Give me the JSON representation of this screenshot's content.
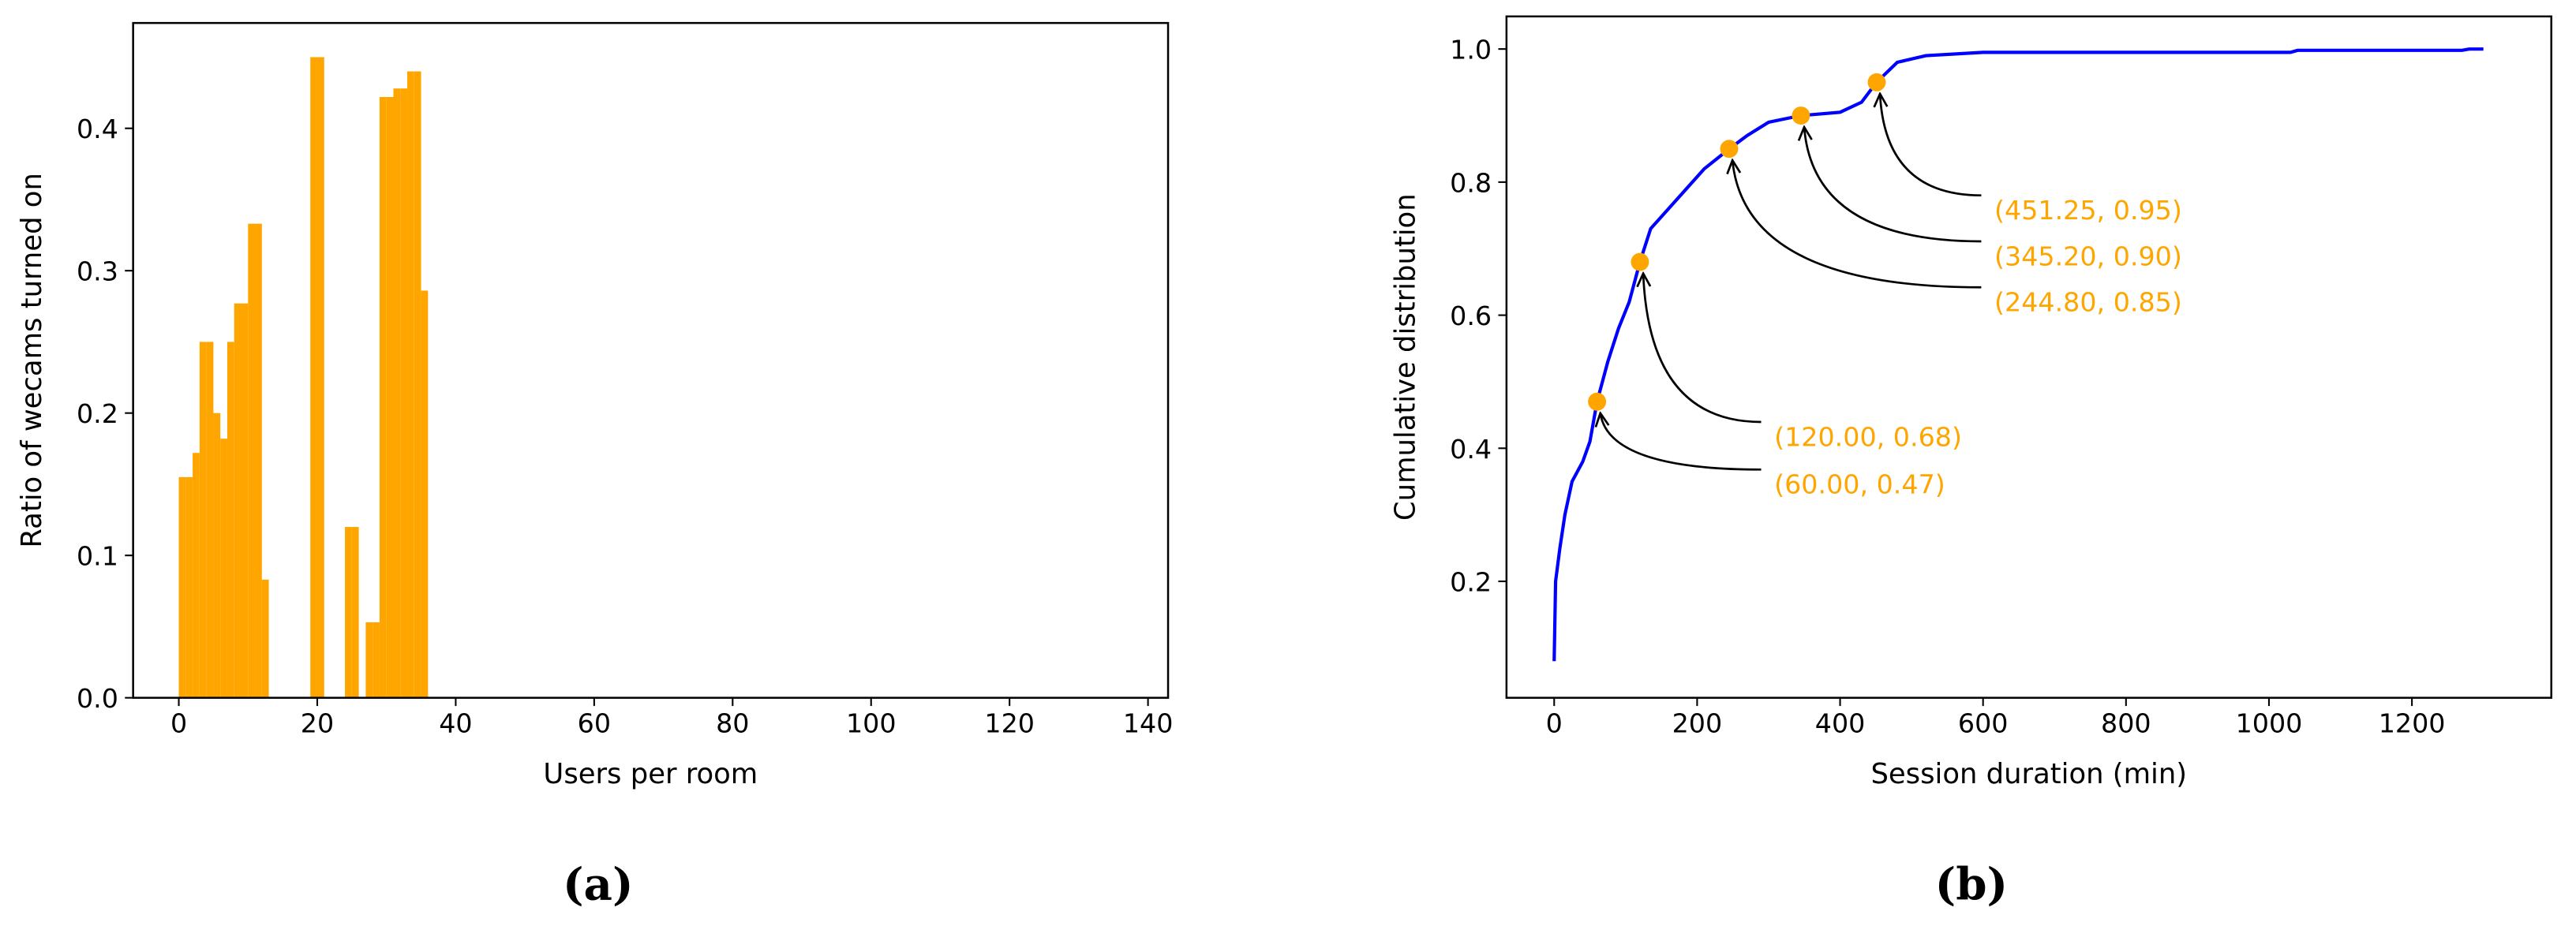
{
  "chart_data": [
    {
      "type": "histogram",
      "caption": "(a)",
      "x_label": "Users per room",
      "y_label": "Ratio of wecams turned on",
      "color": "#ffa500",
      "bins": [
        0,
        1,
        2,
        3,
        4,
        5,
        6,
        7,
        8,
        9,
        10,
        11,
        12,
        13,
        14,
        15,
        16,
        17,
        18,
        19,
        20,
        21,
        22,
        23,
        24,
        25,
        26,
        27,
        28,
        29,
        30,
        31,
        32,
        33,
        34,
        35,
        36
      ],
      "values": [
        0.155,
        0.155,
        0.172,
        0.25,
        0.25,
        0.2,
        0.182,
        0.25,
        0.277,
        0.277,
        0.333,
        0.333,
        0.083,
        0,
        0,
        0,
        0,
        0,
        0,
        0.45,
        0.45,
        0,
        0,
        0,
        0.12,
        0.12,
        0,
        0.053,
        0.053,
        0.422,
        0.422,
        0.428,
        0.428,
        0.44,
        0.44,
        0.286
      ],
      "xlim": [
        -6.6,
        142.9
      ],
      "xticks": [
        0,
        20,
        40,
        60,
        80,
        100,
        120,
        140
      ],
      "ylim": [
        0,
        0.474
      ],
      "yticks": [
        {
          "value": 0,
          "label": "0.0"
        },
        {
          "value": 0.1,
          "label": "0.1"
        },
        {
          "value": 0.2,
          "label": "0.2"
        },
        {
          "value": 0.3,
          "label": "0.3"
        },
        {
          "value": 0.4,
          "label": "0.4"
        }
      ]
    },
    {
      "type": "line",
      "caption": "(b)",
      "x_label": "Session duration (min)",
      "y_label": "Cumulative distribution",
      "color": "#0000ff",
      "annotation_color": "#ffa500",
      "x": [
        0,
        2,
        8,
        15,
        25,
        40,
        50,
        60,
        75,
        90,
        105,
        120,
        135,
        160,
        185,
        210,
        245,
        270,
        300,
        345,
        400,
        430,
        451,
        480,
        520,
        600,
        1030,
        1040,
        1270,
        1280,
        1300
      ],
      "values": [
        0.08,
        0.2,
        0.25,
        0.3,
        0.35,
        0.38,
        0.41,
        0.47,
        0.53,
        0.58,
        0.62,
        0.68,
        0.73,
        0.76,
        0.79,
        0.82,
        0.85,
        0.87,
        0.89,
        0.9,
        0.905,
        0.92,
        0.95,
        0.98,
        0.99,
        0.995,
        0.995,
        0.998,
        0.998,
        1.0,
        1.0
      ],
      "annotations": [
        {
          "x": 60,
          "y": 0.47,
          "label": "(60.00, 0.47)"
        },
        {
          "x": 120,
          "y": 0.68,
          "label": "(120.00, 0.68)"
        },
        {
          "x": 244.8,
          "y": 0.85,
          "label": "(244.80, 0.85)"
        },
        {
          "x": 345.2,
          "y": 0.9,
          "label": "(345.20, 0.90)"
        },
        {
          "x": 451.25,
          "y": 0.95,
          "label": "(451.25, 0.95)"
        }
      ],
      "xlim": [
        -66.7,
        1395
      ],
      "xticks": [
        0,
        200,
        400,
        600,
        800,
        1000,
        1200
      ],
      "ylim": [
        0.025,
        1.049
      ],
      "yticks": [
        0.2,
        0.4,
        0.6,
        0.8,
        {
          "value": 1.0,
          "label": "1.0"
        }
      ]
    }
  ]
}
